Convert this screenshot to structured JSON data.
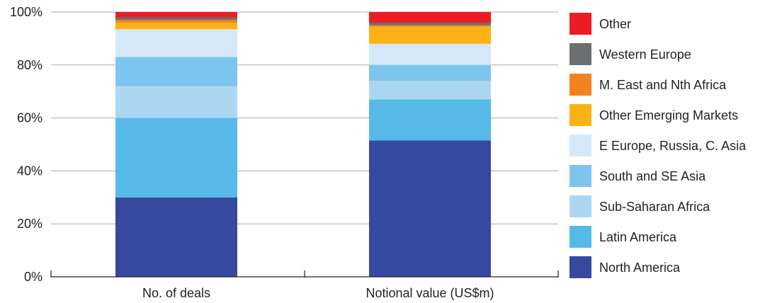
{
  "chart_data": {
    "type": "bar",
    "stacked": true,
    "categories": [
      "No. of deals",
      "Notional value (US$m)"
    ],
    "ylim": [
      0,
      100
    ],
    "yticks": [
      "0%",
      "20%",
      "40%",
      "60%",
      "80%",
      "100%"
    ],
    "grid": true,
    "legend_position": "right",
    "series": [
      {
        "name": "North America",
        "color": "#37499f",
        "values": [
          30,
          51.5
        ]
      },
      {
        "name": "Latin America",
        "color": "#56b9e8",
        "values": [
          30,
          15.5
        ]
      },
      {
        "name": "Sub-Saharan Africa",
        "color": "#acd7f2",
        "values": [
          12,
          7
        ]
      },
      {
        "name": "South and SE Asia",
        "color": "#7cc5ef",
        "values": [
          11,
          6
        ]
      },
      {
        "name": "E Europe, Russia, C. Asia",
        "color": "#d4e8f8",
        "values": [
          10.5,
          8
        ]
      },
      {
        "name": "Other Emerging Markets",
        "color": "#fbb217",
        "values": [
          2.5,
          6.5
        ]
      },
      {
        "name": "M. East and Nth Africa",
        "color": "#f58220",
        "values": [
          1,
          0.5
        ]
      },
      {
        "name": "Western Europe",
        "color": "#6d6e71",
        "values": [
          1,
          1
        ]
      },
      {
        "name": "Other",
        "color": "#ed1c24",
        "values": [
          2,
          4
        ]
      }
    ]
  }
}
